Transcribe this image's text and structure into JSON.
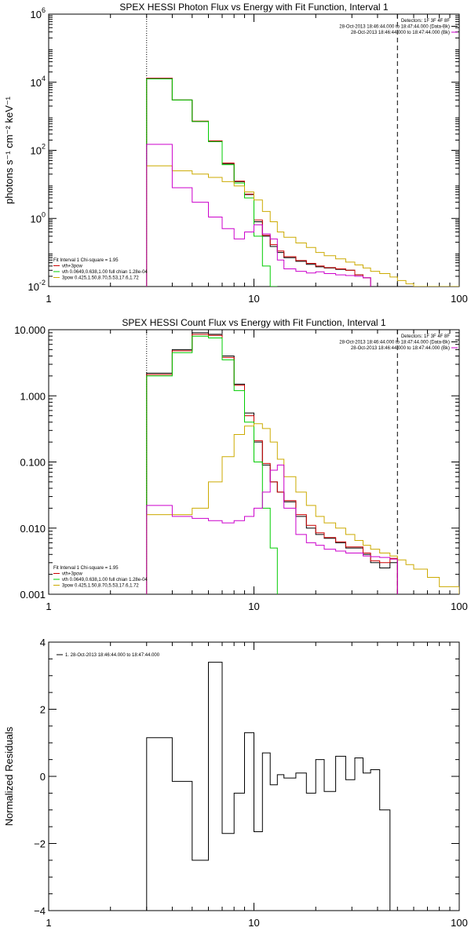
{
  "chart_data": [
    {
      "type": "line",
      "title": "SPEX HESSI Photon Flux vs Energy with Fit Function, Interval 1",
      "ylabel": "photons s⁻¹ cm⁻² keV⁻¹",
      "xlabel": "",
      "xscale": "log",
      "yscale": "log",
      "xlim": [
        1,
        100
      ],
      "ylim": [
        0.01,
        1000000
      ],
      "xticks": [
        {
          "v": 1,
          "label": "1"
        },
        {
          "v": 10,
          "label": "10"
        },
        {
          "v": 100,
          "label": "100"
        }
      ],
      "yticks": [
        {
          "v": 0.01,
          "base": "10",
          "exp": "-2"
        },
        {
          "v": 1,
          "base": "10",
          "exp": "0"
        },
        {
          "v": 100,
          "base": "10",
          "exp": "2"
        },
        {
          "v": 10000,
          "base": "10",
          "exp": "4"
        },
        {
          "v": 1000000,
          "base": "10",
          "exp": "6"
        }
      ],
      "vlines": [
        {
          "x": 3,
          "style": "dotted"
        },
        {
          "x": 50,
          "style": "dashed"
        }
      ],
      "legend_top_right": [
        {
          "text": "Detectors: 1F 3F 4F 8F",
          "color": ""
        },
        {
          "text": "28-Oct-2013 18:46:44.000 to 18:47:44.000 (Data-Bk)",
          "color": "#000000"
        },
        {
          "text": "28-Oct-2013 18:46:44.000 to 18:47:44.000 (Bk)",
          "color": "#cc00cc"
        }
      ],
      "legend_bottom_left": [
        {
          "text": "Fit Interval 1    Chi-square = 1.95",
          "color": ""
        },
        {
          "text": "vth+3pow",
          "color": "#cc0000"
        },
        {
          "text": "vth 0.0649,0.638,1.00  full chian 1.28e-04",
          "color": "#00cc00"
        },
        {
          "text": "3pow 0.425,1.50,8.70,5.53,17.6,1.72",
          "color": "#ccaa00"
        }
      ],
      "bin_edges": [
        3,
        4,
        5,
        6,
        7,
        8,
        9,
        10,
        11,
        12,
        13,
        14,
        16,
        18,
        20,
        22,
        25,
        28,
        31,
        34,
        37,
        41,
        46,
        50,
        55,
        60,
        70,
        80,
        100
      ],
      "series": [
        {
          "color": "#000000",
          "values": [
            13000,
            3000,
            700,
            180,
            40,
            12,
            5,
            0.8,
            0.3,
            0.15,
            0.1,
            0.07,
            0.055,
            0.045,
            0.038,
            0.035,
            0.032,
            0.03,
            0.022,
            0.018
          ]
        },
        {
          "color": "#cc0000",
          "values": [
            13000,
            3000,
            720,
            190,
            42,
            12.5,
            5.2,
            0.9,
            0.32,
            0.17,
            0.11,
            0.075,
            0.058,
            0.048,
            0.04,
            0.036,
            0.033,
            0.03,
            0.022,
            0.018
          ]
        },
        {
          "color": "#00cc00",
          "values": [
            12500,
            3000,
            700,
            180,
            38,
            11,
            4,
            0.3,
            0.04,
            0.01
          ]
        },
        {
          "color": "#ccaa00",
          "values": [
            35,
            25,
            20,
            16,
            12,
            9,
            6,
            3.5,
            1.6,
            0.8,
            0.4,
            0.28,
            0.19,
            0.14,
            0.1,
            0.08,
            0.065,
            0.052,
            0.043,
            0.035,
            0.028,
            0.024,
            0.019,
            0.015,
            0.012,
            0.01,
            0.008,
            0.006
          ]
        },
        {
          "color": "#cc00cc",
          "values": [
            150,
            8,
            3,
            1.1,
            0.5,
            0.25,
            0.4,
            0.65,
            0.35,
            0.25,
            0.06,
            0.033,
            0.028,
            0.025,
            0.027,
            0.024,
            0.022,
            0.021,
            0.02,
            0.018
          ]
        }
      ]
    },
    {
      "type": "line",
      "title": "SPEX HESSI Count Flux vs Energy with Fit Function, Interval 1",
      "ylabel": "",
      "xlabel": "",
      "xscale": "log",
      "yscale": "log",
      "xlim": [
        1,
        100
      ],
      "ylim": [
        0.001,
        10
      ],
      "xticks": [
        {
          "v": 1,
          "label": "1"
        },
        {
          "v": 10,
          "label": "10"
        },
        {
          "v": 100,
          "label": "100"
        }
      ],
      "yticks": [
        {
          "v": 0.001,
          "label": "0.001"
        },
        {
          "v": 0.01,
          "label": "0.010"
        },
        {
          "v": 0.1,
          "label": "0.100"
        },
        {
          "v": 1,
          "label": "1.000"
        },
        {
          "v": 10,
          "label": "10.000"
        }
      ],
      "vlines": [
        {
          "x": 3,
          "style": "dotted"
        },
        {
          "x": 50,
          "style": "dashed"
        }
      ],
      "legend_top_right": [
        {
          "text": "Detectors: 1F 3F 4F 8F",
          "color": ""
        },
        {
          "text": "28-Oct-2013 18:46:44.000 to 18:47:44.000 (Data-Bk)",
          "color": "#000000"
        },
        {
          "text": "28-Oct-2013 18:46:44.000 to 18:47:44.000 (Bk)",
          "color": "#cc00cc"
        }
      ],
      "legend_bottom_left": [
        {
          "text": "Fit Interval 1    Chi-square = 1.95",
          "color": ""
        },
        {
          "text": "vth+3pow",
          "color": "#cc0000"
        },
        {
          "text": "vth 0.0649,0.638,1.00  full chian 1.28e-04",
          "color": "#00cc00"
        },
        {
          "text": "3pow 0.425,1.50,8.70,5.53,17.6,1.72",
          "color": "#ccaa00"
        }
      ],
      "bin_edges": [
        3,
        4,
        5,
        6,
        7,
        8,
        9,
        10,
        11,
        12,
        13,
        14,
        16,
        18,
        20,
        22,
        25,
        28,
        31,
        34,
        37,
        41,
        46,
        50,
        55,
        60,
        70,
        80,
        100
      ],
      "series": [
        {
          "color": "#000000",
          "values": [
            2.2,
            5,
            9,
            8.5,
            4,
            1.5,
            0.55,
            0.2,
            0.09,
            0.05,
            0.035,
            0.025,
            0.015,
            0.01,
            0.008,
            0.007,
            0.006,
            0.005,
            0.005,
            0.004,
            0.003,
            0.0025,
            0.003
          ]
        },
        {
          "color": "#cc0000",
          "values": [
            2.1,
            4.8,
            8.5,
            8.2,
            3.8,
            1.45,
            0.5,
            0.21,
            0.095,
            0.05,
            0.035,
            0.026,
            0.016,
            0.011,
            0.0085,
            0.0072,
            0.0062,
            0.0052,
            0.0052,
            0.0042,
            0.0032,
            0.003,
            0.0035
          ]
        },
        {
          "color": "#00cc00",
          "values": [
            2,
            4.5,
            8,
            7.5,
            3.5,
            1.2,
            0.4,
            0.1,
            0.02,
            0.005
          ]
        },
        {
          "color": "#ccaa00",
          "values": [
            0.016,
            0.016,
            0.02,
            0.05,
            0.12,
            0.26,
            0.35,
            0.38,
            0.32,
            0.2,
            0.11,
            0.06,
            0.035,
            0.022,
            0.015,
            0.012,
            0.01,
            0.008,
            0.0065,
            0.0055,
            0.0048,
            0.0042,
            0.0038,
            0.0033,
            0.0028,
            0.0024,
            0.0018,
            0.0013
          ]
        },
        {
          "color": "#cc00cc",
          "values": [
            0.022,
            0.015,
            0.014,
            0.013,
            0.012,
            0.013,
            0.015,
            0.02,
            0.035,
            0.075,
            0.09,
            0.02,
            0.008,
            0.006,
            0.0055,
            0.0048,
            0.0045,
            0.0042,
            0.0042,
            0.0038,
            0.0037,
            0.0036,
            0.0034
          ]
        }
      ]
    },
    {
      "type": "line",
      "title": "",
      "ylabel": "Normalized Residuals",
      "xlabel": "",
      "xscale": "log",
      "yscale": "linear",
      "xlim": [
        1,
        100
      ],
      "ylim": [
        -4,
        4
      ],
      "xticks": [
        {
          "v": 1,
          "label": "1"
        },
        {
          "v": 10,
          "label": "10"
        },
        {
          "v": 100,
          "label": "100"
        }
      ],
      "yticks": [
        {
          "v": -4,
          "label": "−4"
        },
        {
          "v": -2,
          "label": "−2"
        },
        {
          "v": 0,
          "label": "0"
        },
        {
          "v": 2,
          "label": "2"
        },
        {
          "v": 4,
          "label": "4"
        }
      ],
      "legend_top_left": [
        {
          "text": "1. 28-Oct-2013 18:46:44.000 to 18:47:44.000",
          "color": "#000000"
        }
      ],
      "bin_edges": [
        3,
        4,
        5,
        6,
        7,
        8,
        9,
        10,
        11,
        12,
        13,
        14,
        16,
        18,
        20,
        22,
        25,
        28,
        31,
        34,
        37,
        41,
        46,
        50
      ],
      "series": [
        {
          "color": "#000000",
          "values": [
            1.15,
            -0.15,
            -2.5,
            3.4,
            -1.7,
            -0.5,
            1.3,
            -1.65,
            0.7,
            -0.25,
            0.05,
            -0.05,
            0.1,
            -0.5,
            0.5,
            -0.45,
            0.6,
            -0.1,
            0.55,
            0.1,
            0.2,
            -1.0
          ]
        }
      ]
    }
  ]
}
